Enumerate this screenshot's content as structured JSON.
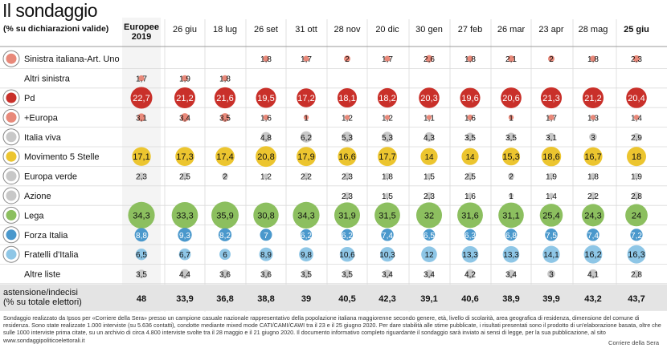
{
  "title": "Il sondaggio",
  "subtitle": "(% su dichiarazioni valide)",
  "chart_data": {
    "type": "table",
    "columns": [
      "Europee\n2019",
      "26 giu",
      "18 lug",
      "26 set",
      "31 ott",
      "28 nov",
      "20 dic",
      "30 gen",
      "27 feb",
      "26 mar",
      "23 apr",
      "28 mag",
      "25 giu"
    ],
    "rows": [
      {
        "party": "Sinistra italiana-Art. Uno",
        "logo": "si-logo",
        "color": "#e8897a",
        "values": [
          null,
          null,
          null,
          1.8,
          1.7,
          2,
          1.7,
          2.6,
          1.8,
          2.1,
          2,
          1.8,
          2.3
        ]
      },
      {
        "party": "Altri sinistra",
        "logo": "",
        "color": "#e8897a",
        "values": [
          1.7,
          1.9,
          1.8,
          null,
          null,
          null,
          null,
          null,
          null,
          null,
          null,
          null,
          null
        ]
      },
      {
        "party": "Pd",
        "logo": "pd-logo",
        "color": "#c9302a",
        "values": [
          22.7,
          21.2,
          21.6,
          19.5,
          17.2,
          18.1,
          18.2,
          20.3,
          19.6,
          20.6,
          21.3,
          21.2,
          20.4
        ]
      },
      {
        "party": "+Europa",
        "logo": "piu-europa-logo",
        "color": "#e8897a",
        "values": [
          3.1,
          3.4,
          3.5,
          1.6,
          1,
          1.2,
          1.2,
          1.1,
          1.6,
          1,
          1.7,
          1.3,
          1.4
        ]
      },
      {
        "party": "Italia viva",
        "logo": "italia-viva-logo",
        "color": "#c8c8c8",
        "values": [
          null,
          null,
          null,
          4.8,
          6.2,
          5.3,
          5.3,
          4.3,
          3.5,
          3.5,
          3.1,
          3,
          2.9
        ]
      },
      {
        "party": "Movimento 5 Stelle",
        "logo": "m5s-logo",
        "color": "#ecc52f",
        "values": [
          17.1,
          17.3,
          17.4,
          20.8,
          17.9,
          16.6,
          17.7,
          14,
          14,
          15.3,
          18.6,
          16.7,
          18
        ]
      },
      {
        "party": "Europa verde",
        "logo": "europa-verde-logo",
        "color": "#c8c8c8",
        "values": [
          2.3,
          2.5,
          2,
          1.2,
          2.2,
          2.3,
          1.8,
          1.5,
          2.5,
          2,
          1.9,
          1.8,
          1.9
        ]
      },
      {
        "party": "Azione",
        "logo": "azione-logo",
        "color": "#c8c8c8",
        "values": [
          null,
          null,
          null,
          null,
          null,
          2.3,
          1.5,
          2.3,
          1.6,
          1,
          1.4,
          2.2,
          2.8
        ]
      },
      {
        "party": "Lega",
        "logo": "lega-logo",
        "color": "#8cbf5f",
        "values": [
          34.3,
          33.3,
          35.9,
          30.8,
          34.3,
          31.9,
          31.5,
          32,
          31.6,
          31.1,
          25.4,
          24.3,
          24
        ]
      },
      {
        "party": "Forza Italia",
        "logo": "forza-italia-logo",
        "color": "#4a98cc",
        "values": [
          8.8,
          9.3,
          8.2,
          7,
          6.2,
          6.2,
          7.4,
          6.5,
          6.3,
          6.8,
          7.5,
          7.4,
          7.2
        ]
      },
      {
        "party": "Fratelli d'Italia",
        "logo": "fdi-logo",
        "color": "#8ec6e6",
        "values": [
          6.5,
          6.7,
          6,
          8.9,
          9.8,
          10.6,
          10.3,
          12,
          13.3,
          13.3,
          14.1,
          16.2,
          16.3
        ]
      },
      {
        "party": "Altre liste",
        "logo": "",
        "color": "#c8c8c8",
        "values": [
          3.5,
          4.4,
          3.6,
          3.6,
          3.5,
          3.5,
          3.4,
          3.4,
          4.2,
          3.4,
          3,
          4.1,
          2.8
        ]
      }
    ],
    "footer_row": {
      "label": "astensione/indecisi\n(% su totale elettori)",
      "values": [
        48,
        33.9,
        36.8,
        38.8,
        39,
        40.5,
        42.3,
        39.1,
        40.6,
        38.9,
        39.9,
        43.2,
        43.7
      ]
    }
  },
  "note": "Sondaggio realizzato da Ipsos per «Corriere della Sera» presso un campione casuale nazionale rappresentativo della popolazione italiana maggiorenne secondo genere, età, livello di scolarità, area geografica di residenza, dimensione del comune di residenza. Sono state realizzate 1.000 interviste (su 5.636 contatti), condotte mediante mixed mode CATI/CAMI/CAWI tra il 23 e il 25 giugno 2020. Per dare stabilità alle stime pubblicate, i risultati presentati sono il prodotto di un'elaborazione basata, oltre che sulle 1000 interviste prima citate, su un archivio di circa 4.800 interviste svolte tra il 28 maggio e il 21 giugno 2020. Il documento informativo completo riguardante il sondaggio sarà inviato ai sensi di legge, per la sua pubblicazione, al sito www.sondaggipoliticoelettorali.it",
  "credit": "Corriere della Sera"
}
